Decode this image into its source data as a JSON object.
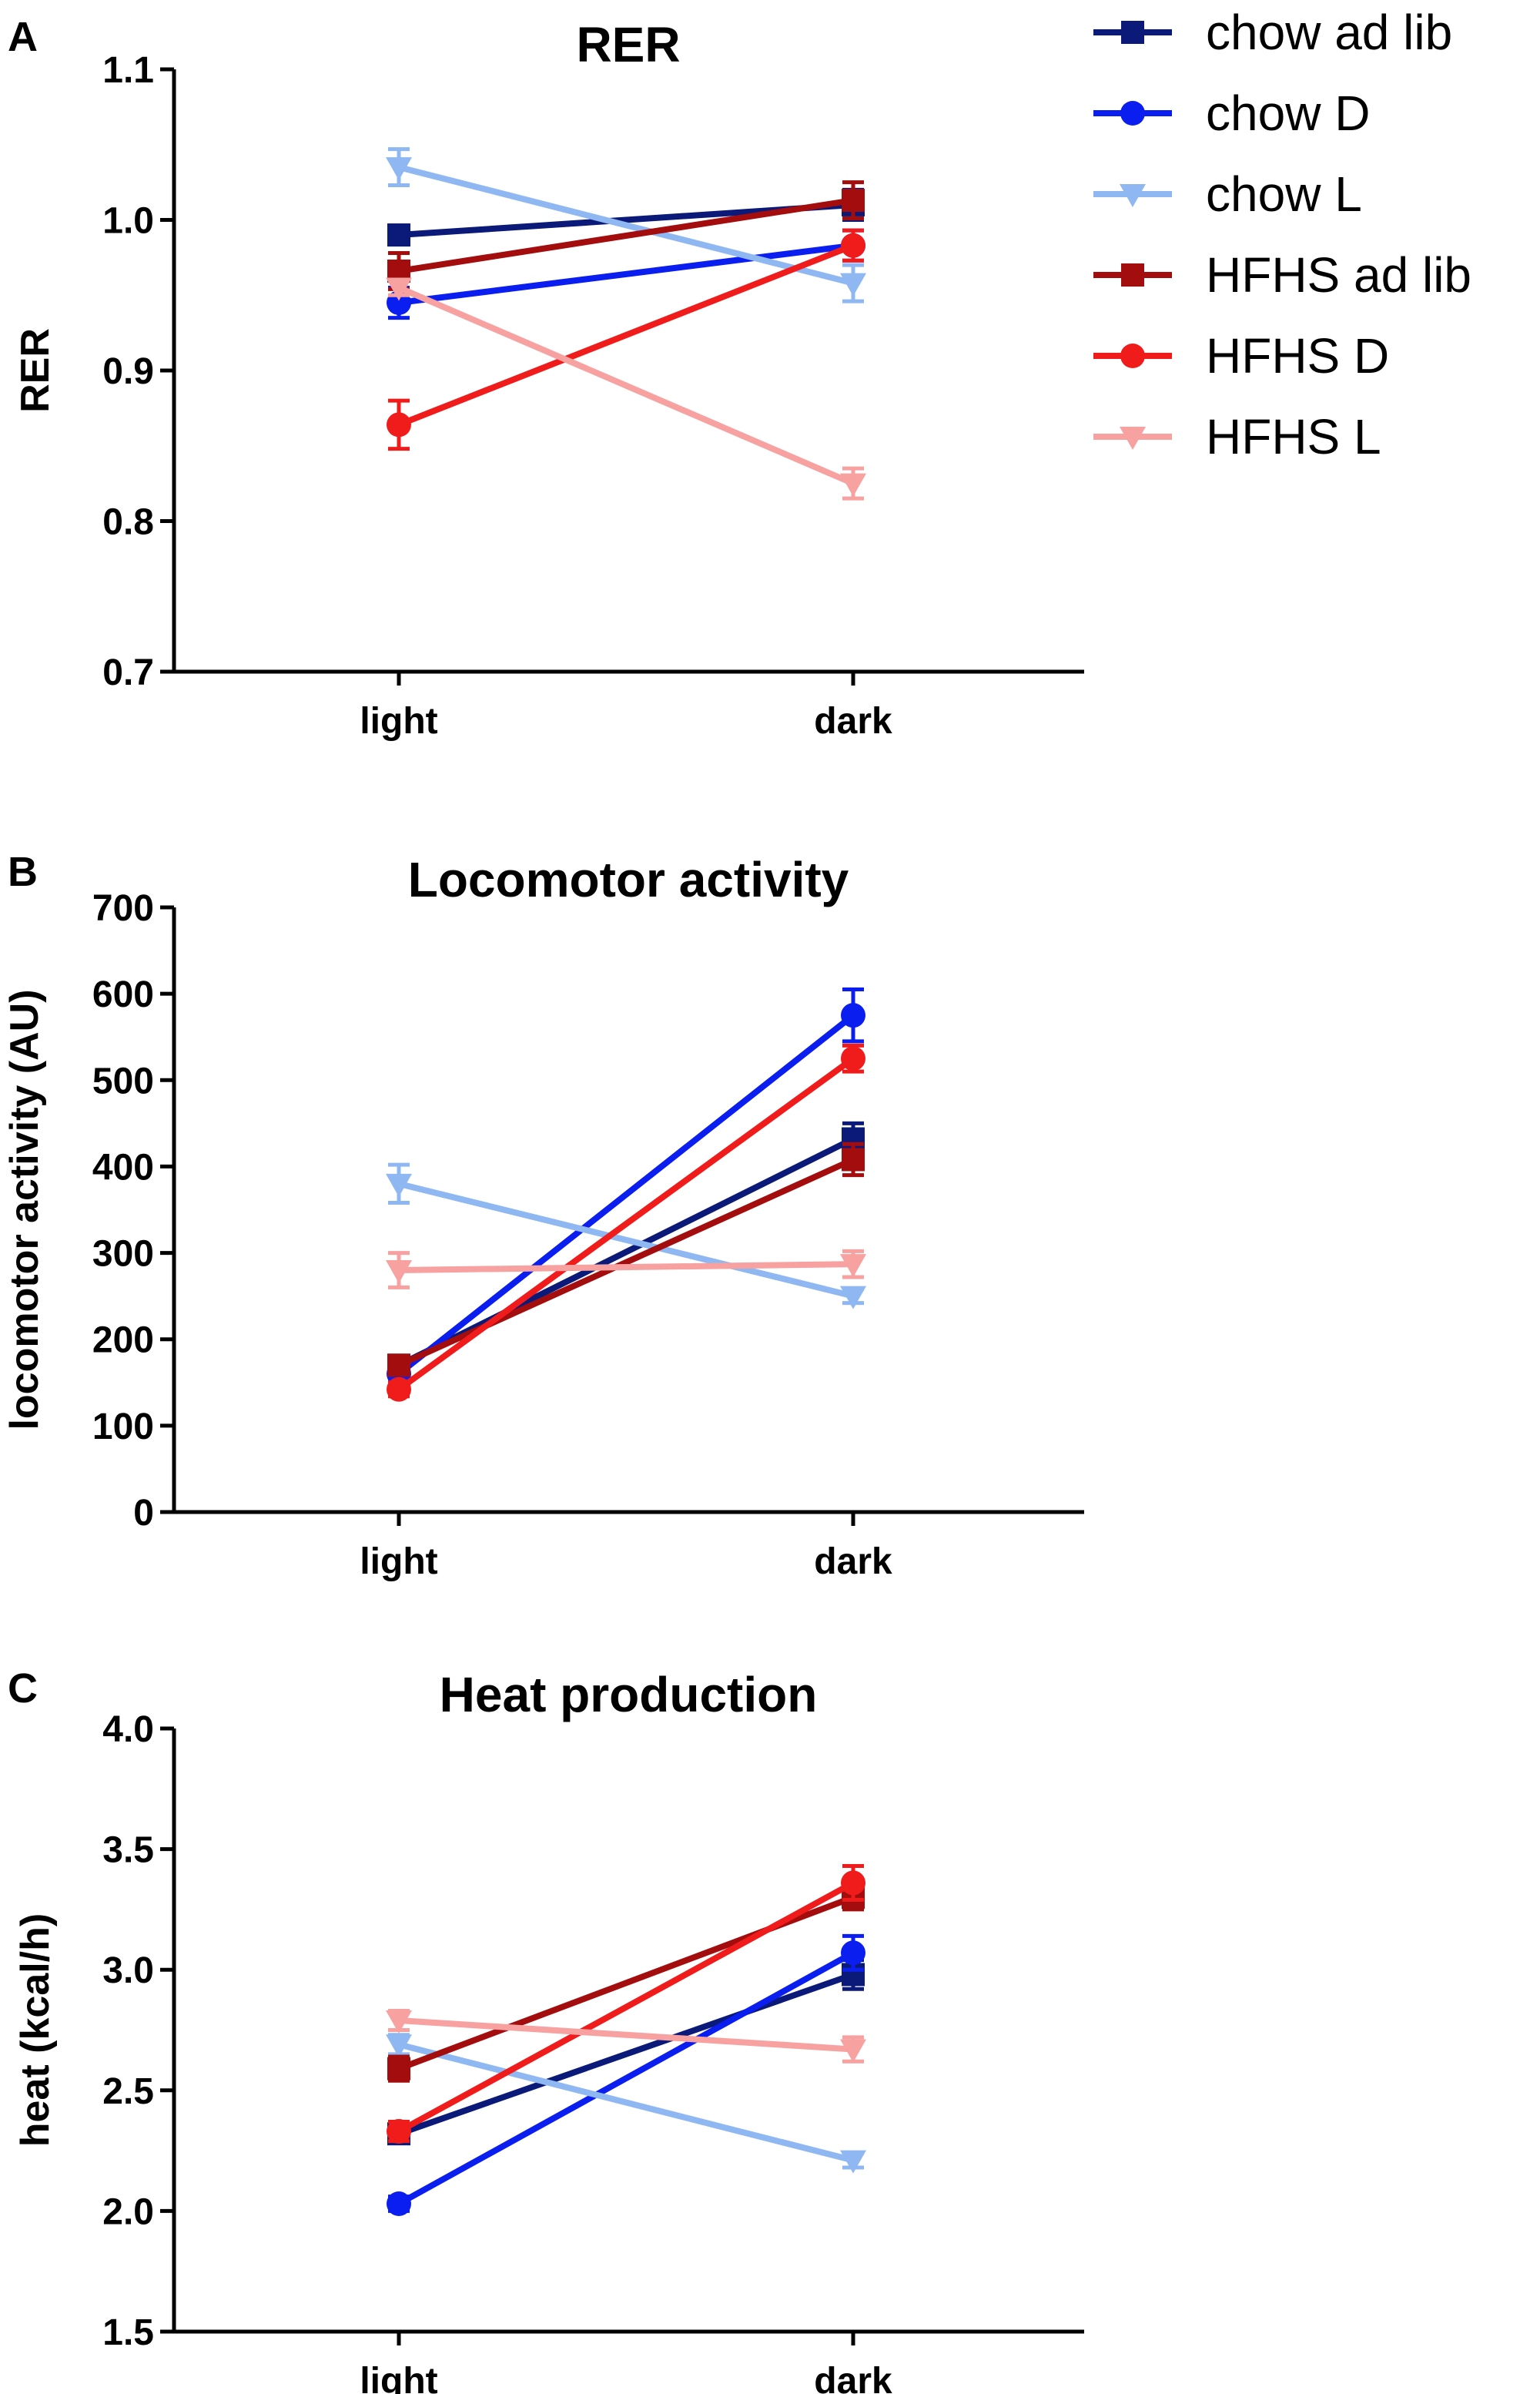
{
  "legend": [
    {
      "name": "chow ad lib",
      "color": "#0b1a78",
      "marker": "square"
    },
    {
      "name": "chow D",
      "color": "#0a1ef0",
      "marker": "circle"
    },
    {
      "name": "chow L",
      "color": "#8fb8f2",
      "marker": "triangle-down"
    },
    {
      "name": "HFHS ad lib",
      "color": "#a30d0d",
      "marker": "square"
    },
    {
      "name": "HFHS D",
      "color": "#f01c1c",
      "marker": "circle"
    },
    {
      "name": "HFHS L",
      "color": "#f7a1a1",
      "marker": "triangle-down"
    }
  ],
  "chart_data": [
    {
      "type": "line",
      "panel": "A",
      "title": "RER",
      "xlabel": "",
      "ylabel": "RER",
      "categories": [
        "light",
        "dark"
      ],
      "ylim": [
        0.7,
        1.1
      ],
      "yticks": [
        "0.7",
        "0.8",
        "0.9",
        "1.0",
        "1.1"
      ],
      "grid": false,
      "series": [
        {
          "name": "chow ad lib",
          "values": [
            0.99,
            1.01
          ],
          "errors": [
            0.005,
            0.01
          ]
        },
        {
          "name": "chow D",
          "values": [
            0.945,
            0.983
          ],
          "errors": [
            0.01,
            0.01
          ]
        },
        {
          "name": "chow L",
          "values": [
            1.035,
            0.958
          ],
          "errors": [
            0.012,
            0.012
          ]
        },
        {
          "name": "HFHS ad lib",
          "values": [
            0.966,
            1.013
          ],
          "errors": [
            0.012,
            0.012
          ]
        },
        {
          "name": "HFHS D",
          "values": [
            0.864,
            0.983
          ],
          "errors": [
            0.016,
            0.01
          ]
        },
        {
          "name": "HFHS L",
          "values": [
            0.955,
            0.825
          ],
          "errors": [
            0.005,
            0.01
          ]
        }
      ]
    },
    {
      "type": "line",
      "panel": "B",
      "title": "Locomotor activity",
      "xlabel": "",
      "ylabel": "locomotor activity (AU)",
      "categories": [
        "light",
        "dark"
      ],
      "ylim": [
        0,
        700
      ],
      "yticks": [
        "0",
        "100",
        "200",
        "300",
        "400",
        "500",
        "600",
        "700"
      ],
      "grid": false,
      "series": [
        {
          "name": "chow ad lib",
          "values": [
            170,
            432
          ],
          "errors": [
            10,
            18
          ]
        },
        {
          "name": "chow D",
          "values": [
            160,
            575
          ],
          "errors": [
            8,
            30
          ]
        },
        {
          "name": "chow L",
          "values": [
            380,
            250
          ],
          "errors": [
            22,
            8
          ]
        },
        {
          "name": "HFHS ad lib",
          "values": [
            170,
            408
          ],
          "errors": [
            8,
            18
          ]
        },
        {
          "name": "HFHS D",
          "values": [
            142,
            525
          ],
          "errors": [
            8,
            15
          ]
        },
        {
          "name": "HFHS L",
          "values": [
            280,
            287
          ],
          "errors": [
            20,
            15
          ]
        }
      ]
    },
    {
      "type": "line",
      "panel": "C",
      "title": "Heat production",
      "xlabel": "",
      "ylabel": "heat (kcal/h)",
      "categories": [
        "light",
        "dark"
      ],
      "ylim": [
        1.5,
        4.0
      ],
      "yticks": [
        "1.5",
        "2.0",
        "2.5",
        "3.0",
        "3.5",
        "4.0"
      ],
      "grid": false,
      "series": [
        {
          "name": "chow ad lib",
          "values": [
            2.32,
            2.98
          ],
          "errors": [
            0.03,
            0.06
          ]
        },
        {
          "name": "chow D",
          "values": [
            2.03,
            3.07
          ],
          "errors": [
            0.03,
            0.07
          ]
        },
        {
          "name": "chow L",
          "values": [
            2.69,
            2.21
          ],
          "errors": [
            0.04,
            0.03
          ]
        },
        {
          "name": "HFHS ad lib",
          "values": [
            2.59,
            3.3
          ],
          "errors": [
            0.05,
            0.05
          ]
        },
        {
          "name": "HFHS D",
          "values": [
            2.33,
            3.36
          ],
          "errors": [
            0.04,
            0.07
          ]
        },
        {
          "name": "HFHS L",
          "values": [
            2.79,
            2.67
          ],
          "errors": [
            0.04,
            0.05
          ]
        }
      ]
    }
  ]
}
